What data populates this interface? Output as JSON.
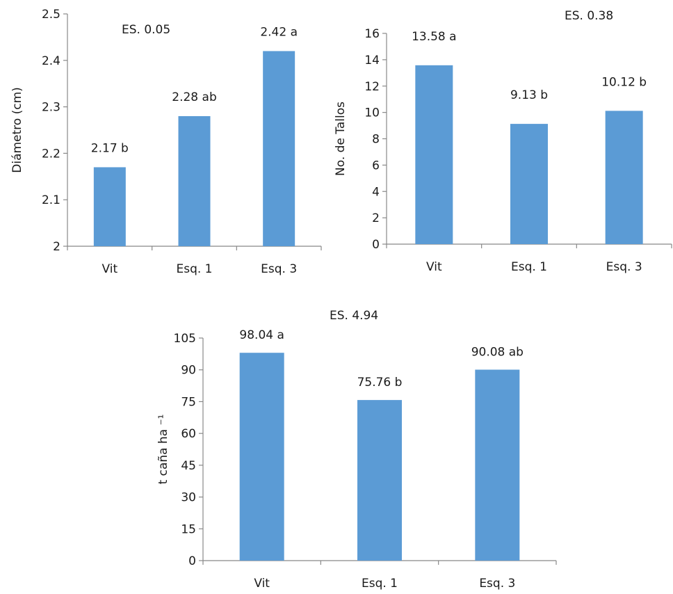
{
  "colors": {
    "bar": "#5b9bd5",
    "axis": "#888888",
    "text": "#1a1a1a"
  },
  "chart_data": [
    {
      "type": "bar",
      "ylabel": "Diámetro (cm)",
      "es_label": "ES. 0.05",
      "ylim": [
        2,
        2.5
      ],
      "yticks": [
        2,
        2.1,
        2.2,
        2.3,
        2.4,
        2.5
      ],
      "ytick_labels": [
        "2",
        "2.1",
        "2.2",
        "2.3",
        "2.4",
        "2.5"
      ],
      "categories": [
        "Vit",
        "Esq. 1",
        "Esq. 3"
      ],
      "values": [
        2.17,
        2.28,
        2.42
      ],
      "data_labels": [
        "2.17 b",
        "2.28 ab",
        "2.42 a"
      ]
    },
    {
      "type": "bar",
      "ylabel": "No. de Tallos",
      "es_label": "ES. 0.38",
      "ylim": [
        0,
        16
      ],
      "yticks": [
        0,
        2,
        4,
        6,
        8,
        10,
        12,
        14,
        16
      ],
      "ytick_labels": [
        "0",
        "2",
        "4",
        "6",
        "8",
        "10",
        "12",
        "14",
        "16"
      ],
      "categories": [
        "Vit",
        "Esq. 1",
        "Esq. 3"
      ],
      "values": [
        13.58,
        9.13,
        10.12
      ],
      "data_labels": [
        "13.58 a",
        "9.13 b",
        "10.12 b"
      ]
    },
    {
      "type": "bar",
      "ylabel": "t caña ha ⁻¹",
      "es_label": "ES. 4.94",
      "ylim": [
        0,
        105
      ],
      "yticks": [
        0,
        15,
        30,
        45,
        60,
        75,
        90,
        105
      ],
      "ytick_labels": [
        "0",
        "15",
        "30",
        "45",
        "60",
        "75",
        "90",
        "105"
      ],
      "categories": [
        "Vit",
        "Esq. 1",
        "Esq. 3"
      ],
      "values": [
        98.04,
        75.76,
        90.08
      ],
      "data_labels": [
        "98.04 a",
        "75.76 b",
        "90.08 ab"
      ]
    }
  ]
}
